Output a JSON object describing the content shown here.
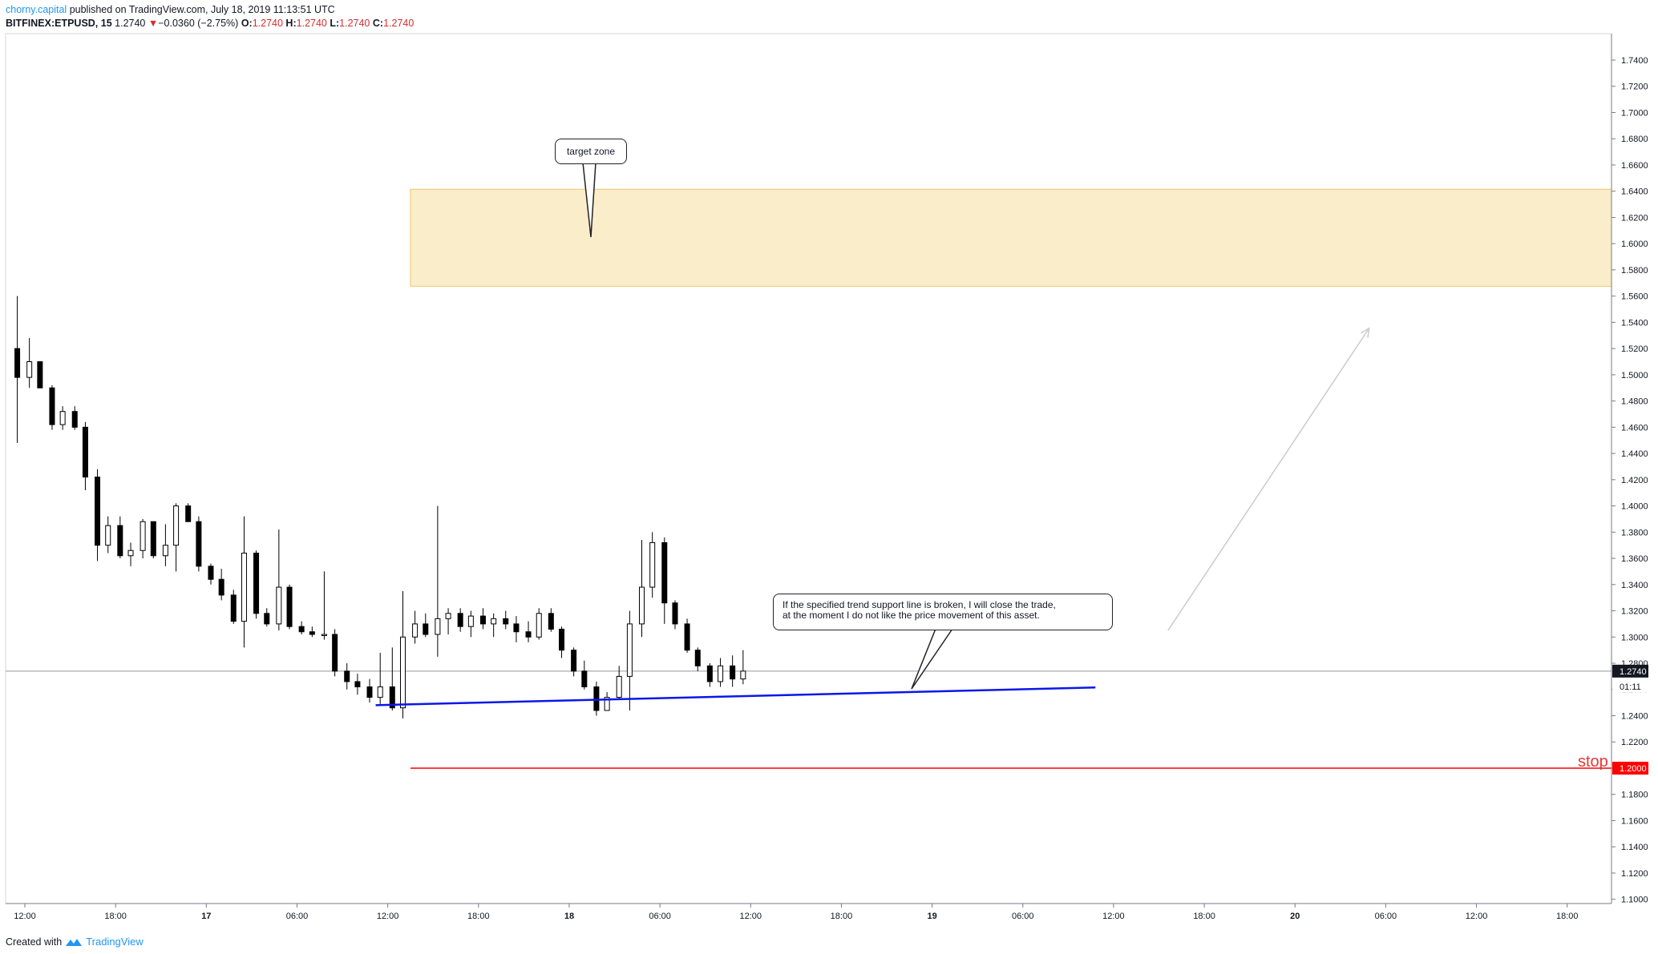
{
  "header": {
    "author": "chorny.capital",
    "published": "published on TradingView.com, July 18, 2019 11:13:51 UTC",
    "symbol": "BITFINEX:ETPUSD, 15",
    "price": "1.2740",
    "change": "−0.0360 (−2.75%)",
    "o_label": "O:",
    "o_value": "1.2740",
    "h_label": "H:",
    "h_value": "1.2740",
    "l_label": "L:",
    "l_value": "1.2740",
    "c_label": "C:",
    "c_value": "1.2740"
  },
  "footer": {
    "created": "Created with",
    "brand": "TradingView"
  },
  "annotations": {
    "target_zone": "target zone",
    "trend_line1": "If the specified trend support line is broken, I will close the trade,",
    "trend_line2": "at the moment I do not like the price movement of this asset.",
    "stop": "stop"
  },
  "colors": {
    "up": "#ffffff",
    "down": "#000000",
    "trend": "#0a17e8",
    "stop": "#ff0000",
    "zone_fill": "#faedc9",
    "zone_border": "#f1c76b",
    "grid": "#e9eaec"
  },
  "chart_data": {
    "type": "candlestick",
    "symbol": "BITFINEX:ETPUSD",
    "interval": "15",
    "y_range": [
      1.095,
      1.755
    ],
    "y_ticks": [
      "1.7400",
      "1.7200",
      "1.7000",
      "1.6800",
      "1.6600",
      "1.6400",
      "1.6200",
      "1.6000",
      "1.5800",
      "1.5600",
      "1.5400",
      "1.5200",
      "1.5000",
      "1.4800",
      "1.4600",
      "1.4400",
      "1.4200",
      "1.4000",
      "1.3800",
      "1.3600",
      "1.3400",
      "1.3200",
      "1.3000",
      "1.2800",
      "1.2600",
      "1.2400",
      "1.2200",
      "1.2000",
      "1.1800",
      "1.1600",
      "1.1400",
      "1.1200",
      "1.1000"
    ],
    "x_ticks": [
      {
        "label": "12:00",
        "h": 0
      },
      {
        "label": "18:00",
        "h": 6
      },
      {
        "label": "17",
        "h": 12
      },
      {
        "label": "06:00",
        "h": 18
      },
      {
        "label": "12:00",
        "h": 24
      },
      {
        "label": "18:00",
        "h": 30
      },
      {
        "label": "18",
        "h": 36
      },
      {
        "label": "06:00",
        "h": 42
      },
      {
        "label": "12:00",
        "h": 48
      },
      {
        "label": "18:00",
        "h": 54
      },
      {
        "label": "19",
        "h": 60
      },
      {
        "label": "06:00",
        "h": 66
      },
      {
        "label": "12:00",
        "h": 72
      },
      {
        "label": "18:00",
        "h": 78
      },
      {
        "label": "20",
        "h": 84
      },
      {
        "label": "06:00",
        "h": 90
      },
      {
        "label": "12:00",
        "h": 96
      },
      {
        "label": "18:00",
        "h": 102
      }
    ],
    "current_price": 1.274,
    "countdown": "01:11",
    "stop_price": 1.2,
    "stop_price_label": "1.2000",
    "current_price_label": "1.2740",
    "target_zone": {
      "from_h": 25.5,
      "to_h": 102.0,
      "low": 1.5675,
      "high": 1.6415
    },
    "trend_line": {
      "start_h": 23.2,
      "start_price": 1.248,
      "end_h": 70.8,
      "end_price": 1.2615
    },
    "projection_arrow": {
      "start_h": 75.6,
      "start_price": 1.305,
      "end_h": 88.9,
      "end_price": 1.5355
    },
    "candles_hourly": [
      {
        "h": -0.5,
        "o": 1.52,
        "h1": 1.56,
        "l": 1.448,
        "c": 1.498
      },
      {
        "h": 0.3,
        "o": 1.498,
        "h1": 1.528,
        "l": 1.49,
        "c": 1.51
      },
      {
        "h": 1.0,
        "o": 1.51,
        "h1": 1.51,
        "l": 1.49,
        "c": 1.49
      },
      {
        "h": 1.8,
        "o": 1.49,
        "h1": 1.492,
        "l": 1.458,
        "c": 1.462
      },
      {
        "h": 2.5,
        "o": 1.462,
        "h1": 1.476,
        "l": 1.458,
        "c": 1.472
      },
      {
        "h": 3.3,
        "o": 1.472,
        "h1": 1.476,
        "l": 1.458,
        "c": 1.46
      },
      {
        "h": 4.0,
        "o": 1.46,
        "h1": 1.464,
        "l": 1.412,
        "c": 1.422
      },
      {
        "h": 4.8,
        "o": 1.422,
        "h1": 1.428,
        "l": 1.358,
        "c": 1.37
      },
      {
        "h": 5.5,
        "o": 1.37,
        "h1": 1.392,
        "l": 1.364,
        "c": 1.385
      },
      {
        "h": 6.3,
        "o": 1.385,
        "h1": 1.392,
        "l": 1.36,
        "c": 1.362
      },
      {
        "h": 7.0,
        "o": 1.362,
        "h1": 1.372,
        "l": 1.354,
        "c": 1.366
      },
      {
        "h": 7.8,
        "o": 1.366,
        "h1": 1.39,
        "l": 1.36,
        "c": 1.388
      },
      {
        "h": 8.5,
        "o": 1.388,
        "h1": 1.388,
        "l": 1.36,
        "c": 1.362
      },
      {
        "h": 9.3,
        "o": 1.362,
        "h1": 1.386,
        "l": 1.354,
        "c": 1.37
      },
      {
        "h": 10.0,
        "o": 1.37,
        "h1": 1.402,
        "l": 1.35,
        "c": 1.4
      },
      {
        "h": 10.8,
        "o": 1.4,
        "h1": 1.402,
        "l": 1.388,
        "c": 1.388
      },
      {
        "h": 11.5,
        "o": 1.388,
        "h1": 1.392,
        "l": 1.35,
        "c": 1.354
      },
      {
        "h": 12.3,
        "o": 1.354,
        "h1": 1.356,
        "l": 1.34,
        "c": 1.344
      },
      {
        "h": 13.0,
        "o": 1.344,
        "h1": 1.352,
        "l": 1.328,
        "c": 1.332
      },
      {
        "h": 13.8,
        "o": 1.332,
        "h1": 1.336,
        "l": 1.31,
        "c": 1.312
      },
      {
        "h": 14.5,
        "o": 1.312,
        "h1": 1.392,
        "l": 1.292,
        "c": 1.364
      },
      {
        "h": 15.3,
        "o": 1.364,
        "h1": 1.366,
        "l": 1.314,
        "c": 1.318
      },
      {
        "h": 16.0,
        "o": 1.318,
        "h1": 1.322,
        "l": 1.308,
        "c": 1.31
      },
      {
        "h": 16.8,
        "o": 1.31,
        "h1": 1.382,
        "l": 1.305,
        "c": 1.338
      },
      {
        "h": 17.5,
        "o": 1.338,
        "h1": 1.34,
        "l": 1.306,
        "c": 1.308
      },
      {
        "h": 18.3,
        "o": 1.308,
        "h1": 1.312,
        "l": 1.302,
        "c": 1.304
      },
      {
        "h": 19.0,
        "o": 1.304,
        "h1": 1.308,
        "l": 1.3,
        "c": 1.302
      },
      {
        "h": 19.8,
        "o": 1.302,
        "h1": 1.35,
        "l": 1.298,
        "c": 1.302
      },
      {
        "h": 20.5,
        "o": 1.302,
        "h1": 1.306,
        "l": 1.27,
        "c": 1.274
      },
      {
        "h": 21.3,
        "o": 1.274,
        "h1": 1.28,
        "l": 1.26,
        "c": 1.266
      },
      {
        "h": 22.0,
        "o": 1.266,
        "h1": 1.272,
        "l": 1.256,
        "c": 1.262
      },
      {
        "h": 22.8,
        "o": 1.262,
        "h1": 1.268,
        "l": 1.25,
        "c": 1.254
      },
      {
        "h": 23.5,
        "o": 1.254,
        "h1": 1.288,
        "l": 1.248,
        "c": 1.262
      },
      {
        "h": 24.3,
        "o": 1.262,
        "h1": 1.292,
        "l": 1.244,
        "c": 1.246
      },
      {
        "h": 25.0,
        "o": 1.246,
        "h1": 1.335,
        "l": 1.238,
        "c": 1.3
      },
      {
        "h": 25.8,
        "o": 1.3,
        "h1": 1.32,
        "l": 1.295,
        "c": 1.31
      },
      {
        "h": 26.5,
        "o": 1.31,
        "h1": 1.318,
        "l": 1.3,
        "c": 1.302
      },
      {
        "h": 27.3,
        "o": 1.302,
        "h1": 1.4,
        "l": 1.285,
        "c": 1.314
      },
      {
        "h": 28.0,
        "o": 1.314,
        "h1": 1.322,
        "l": 1.302,
        "c": 1.318
      },
      {
        "h": 28.8,
        "o": 1.318,
        "h1": 1.322,
        "l": 1.304,
        "c": 1.308
      },
      {
        "h": 29.5,
        "o": 1.308,
        "h1": 1.32,
        "l": 1.3,
        "c": 1.316
      },
      {
        "h": 30.3,
        "o": 1.316,
        "h1": 1.322,
        "l": 1.306,
        "c": 1.31
      },
      {
        "h": 31.0,
        "o": 1.31,
        "h1": 1.318,
        "l": 1.3,
        "c": 1.314
      },
      {
        "h": 31.8,
        "o": 1.314,
        "h1": 1.32,
        "l": 1.306,
        "c": 1.31
      },
      {
        "h": 32.5,
        "o": 1.31,
        "h1": 1.316,
        "l": 1.296,
        "c": 1.304
      },
      {
        "h": 33.3,
        "o": 1.304,
        "h1": 1.312,
        "l": 1.296,
        "c": 1.3
      },
      {
        "h": 34.0,
        "o": 1.3,
        "h1": 1.322,
        "l": 1.298,
        "c": 1.318
      },
      {
        "h": 34.8,
        "o": 1.318,
        "h1": 1.322,
        "l": 1.304,
        "c": 1.306
      },
      {
        "h": 35.5,
        "o": 1.306,
        "h1": 1.308,
        "l": 1.284,
        "c": 1.29
      },
      {
        "h": 36.3,
        "o": 1.29,
        "h1": 1.292,
        "l": 1.27,
        "c": 1.274
      },
      {
        "h": 37.0,
        "o": 1.274,
        "h1": 1.282,
        "l": 1.26,
        "c": 1.262
      },
      {
        "h": 37.8,
        "o": 1.262,
        "h1": 1.266,
        "l": 1.24,
        "c": 1.244
      },
      {
        "h": 38.5,
        "o": 1.244,
        "h1": 1.258,
        "l": 1.244,
        "c": 1.254
      },
      {
        "h": 39.3,
        "o": 1.254,
        "h1": 1.278,
        "l": 1.252,
        "c": 1.27
      },
      {
        "h": 40.0,
        "o": 1.27,
        "h1": 1.32,
        "l": 1.244,
        "c": 1.31
      },
      {
        "h": 40.8,
        "o": 1.31,
        "h1": 1.374,
        "l": 1.3,
        "c": 1.338
      },
      {
        "h": 41.5,
        "o": 1.338,
        "h1": 1.38,
        "l": 1.33,
        "c": 1.372
      },
      {
        "h": 42.3,
        "o": 1.372,
        "h1": 1.376,
        "l": 1.31,
        "c": 1.326
      },
      {
        "h": 43.0,
        "o": 1.326,
        "h1": 1.328,
        "l": 1.306,
        "c": 1.31
      },
      {
        "h": 43.8,
        "o": 1.31,
        "h1": 1.314,
        "l": 1.288,
        "c": 1.29
      },
      {
        "h": 44.5,
        "o": 1.29,
        "h1": 1.292,
        "l": 1.274,
        "c": 1.278
      },
      {
        "h": 45.3,
        "o": 1.278,
        "h1": 1.28,
        "l": 1.262,
        "c": 1.266
      },
      {
        "h": 46.0,
        "o": 1.266,
        "h1": 1.284,
        "l": 1.262,
        "c": 1.278
      },
      {
        "h": 46.8,
        "o": 1.278,
        "h1": 1.286,
        "l": 1.262,
        "c": 1.268
      },
      {
        "h": 47.5,
        "o": 1.268,
        "h1": 1.29,
        "l": 1.264,
        "c": 1.274
      }
    ]
  }
}
